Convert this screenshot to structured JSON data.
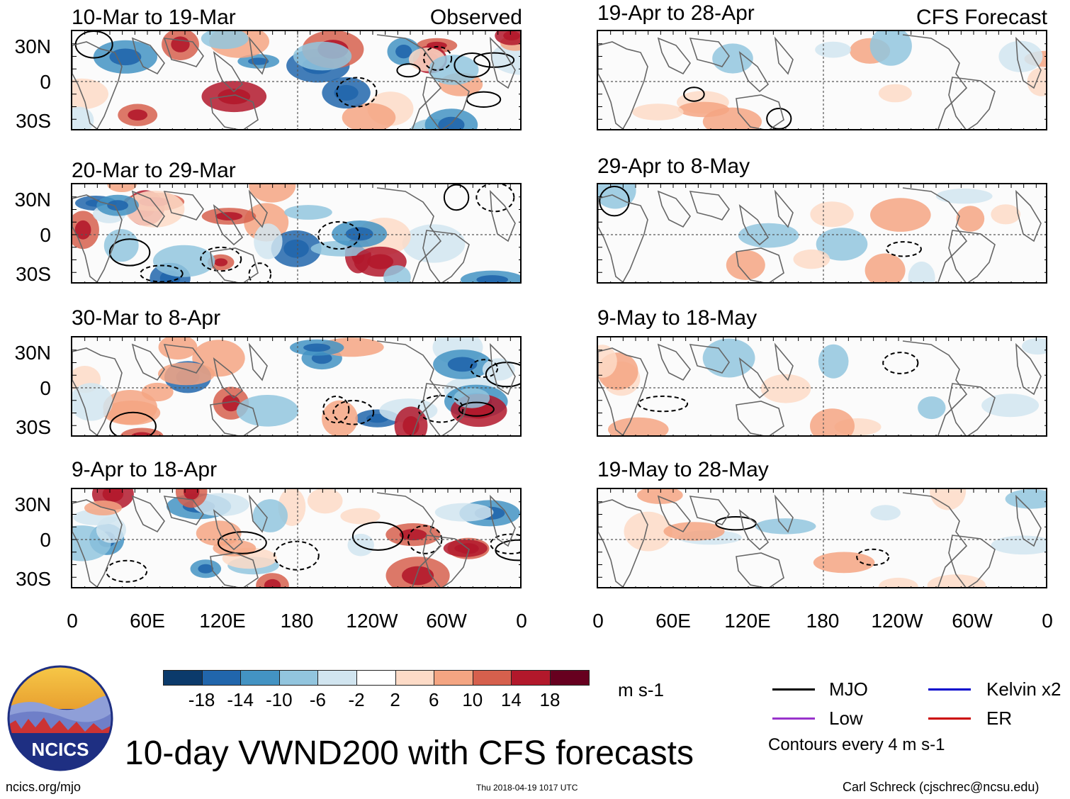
{
  "header": {
    "left_label": "Observed",
    "right_label": "CFS Forecast"
  },
  "observed_panels": [
    {
      "period": "10-Mar to 19-Mar"
    },
    {
      "period": "20-Mar to 29-Mar"
    },
    {
      "period": "30-Mar to 8-Apr"
    },
    {
      "period": "9-Apr to 18-Apr"
    }
  ],
  "forecast_panels": [
    {
      "period": "19-Apr to 28-Apr"
    },
    {
      "period": "29-Apr to 8-May"
    },
    {
      "period": "9-May to 18-May"
    },
    {
      "period": "19-May to 28-May"
    }
  ],
  "lat_labels": [
    "30N",
    "0",
    "30S"
  ],
  "lon_labels": [
    "0",
    "60E",
    "120E",
    "180",
    "120W",
    "60W",
    "0"
  ],
  "colorbar": {
    "units": "m s-1",
    "labels": [
      "-18",
      "-14",
      "-10",
      "-6",
      "-2",
      "2",
      "6",
      "10",
      "14",
      "18"
    ],
    "colors": [
      "#0b3a6b",
      "#2166ac",
      "#4393c3",
      "#92c5de",
      "#d1e5f0",
      "#ffffff",
      "#fddbc7",
      "#f4a582",
      "#d6604d",
      "#b2182b",
      "#67001f"
    ]
  },
  "legend": {
    "items": [
      {
        "label": "MJO",
        "color": "#000000"
      },
      {
        "label": "Kelvin x2",
        "color": "#0000cc"
      },
      {
        "label": "Low",
        "color": "#9933cc"
      },
      {
        "label": "ER",
        "color": "#cc0000"
      }
    ],
    "note": "Contours every 4 m s-1"
  },
  "footer": {
    "title": "10-day VWND200 with CFS forecasts",
    "website": "ncics.org/mjo",
    "timestamp": "Thu 2018-04-19 1017 UTC",
    "author": "Carl Schreck (cjschrec@ncsu.edu)",
    "logo_text": "NCICS"
  }
}
